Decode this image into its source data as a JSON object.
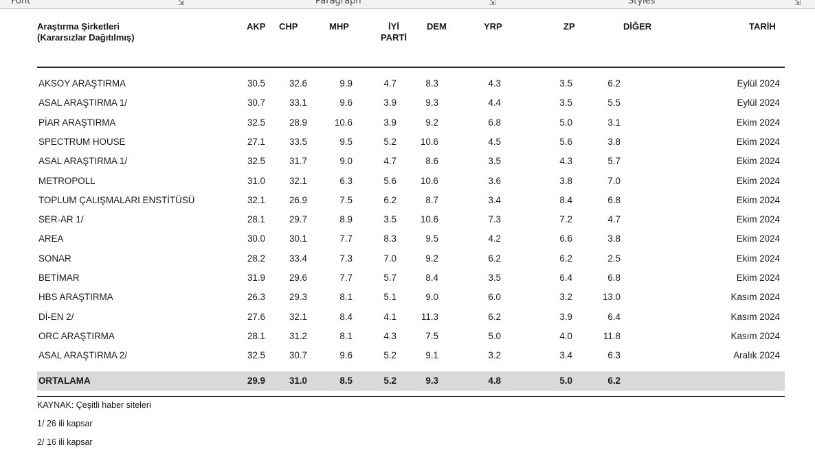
{
  "ribbon": {
    "groups": [
      "Font",
      "Paragraph",
      "Styles"
    ]
  },
  "table": {
    "header": {
      "company": [
        "Araştırma Şirketleri",
        "(Kararsızlar Dağıtılmış)"
      ],
      "akp": "AKP",
      "chp": "CHP",
      "mhp": "MHP",
      "iyi": [
        "İYİ",
        "PARTİ"
      ],
      "dem": "DEM",
      "yrp": "YRP",
      "zp": "ZP",
      "diger": "DİĞER",
      "tarih": "TARİH"
    },
    "rows": [
      {
        "company": "AKSOY ARAŞTIRMA",
        "akp": "30.5",
        "chp": "32.6",
        "mhp": "9.9",
        "iyi": "4.7",
        "dem": "8.3",
        "yrp": "4.3",
        "zp": "3.5",
        "diger": "6.2",
        "tarih": "Eylül 2024"
      },
      {
        "company": "ASAL ARAŞTIRMA 1/",
        "akp": "30.7",
        "chp": "33.1",
        "mhp": "9.6",
        "iyi": "3.9",
        "dem": "9.3",
        "yrp": "4.4",
        "zp": "3.5",
        "diger": "5.5",
        "tarih": "Eylül 2024"
      },
      {
        "company": "PİAR ARAŞTIRMA",
        "akp": "32.5",
        "chp": "28.9",
        "mhp": "10.6",
        "iyi": "3.9",
        "dem": "9.2",
        "yrp": "6.8",
        "zp": "5.0",
        "diger": "3.1",
        "tarih": "Ekim 2024"
      },
      {
        "company": "SPECTRUM HOUSE",
        "akp": "27.1",
        "chp": "33.5",
        "mhp": "9.5",
        "iyi": "5.2",
        "dem": "10.6",
        "yrp": "4.5",
        "zp": "5.6",
        "diger": "3.8",
        "tarih": "Ekim 2024"
      },
      {
        "company": "ASAL ARAŞTIRMA 1/",
        "akp": "32.5",
        "chp": "31.7",
        "mhp": "9.0",
        "iyi": "4.7",
        "dem": "8.6",
        "yrp": "3.5",
        "zp": "4.3",
        "diger": "5.7",
        "tarih": "Ekim 2024"
      },
      {
        "company": "METROPOLL",
        "akp": "31.0",
        "chp": "32.1",
        "mhp": "6.3",
        "iyi": "5.6",
        "dem": "10.6",
        "yrp": "3.6",
        "zp": "3.8",
        "diger": "7.0",
        "tarih": "Ekim 2024"
      },
      {
        "company": "TOPLUM ÇALIŞMALARI ENSTİTÜSÜ",
        "akp": "32.1",
        "chp": "26.9",
        "mhp": "7.5",
        "iyi": "6.2",
        "dem": "8.7",
        "yrp": "3.4",
        "zp": "8.4",
        "diger": "6.8",
        "tarih": "Ekim 2024"
      },
      {
        "company": "SER-AR 1/",
        "akp": "28.1",
        "chp": "29.7",
        "mhp": "8.9",
        "iyi": "3.5",
        "dem": "10.6",
        "yrp": "7.3",
        "zp": "7.2",
        "diger": "4.7",
        "tarih": "Ekim 2024"
      },
      {
        "company": "AREA",
        "akp": "30.0",
        "chp": "30.1",
        "mhp": "7.7",
        "iyi": "8.3",
        "dem": "9.5",
        "yrp": "4.2",
        "zp": "6.6",
        "diger": "3.8",
        "tarih": "Ekim 2024"
      },
      {
        "company": "SONAR",
        "akp": "28.2",
        "chp": "33.4",
        "mhp": "7.3",
        "iyi": "7.0",
        "dem": "9.2",
        "yrp": "6.2",
        "zp": "6.2",
        "diger": "2.5",
        "tarih": "Ekim 2024"
      },
      {
        "company": "BETİMAR",
        "akp": "31.9",
        "chp": "29.6",
        "mhp": "7.7",
        "iyi": "5.7",
        "dem": "8.4",
        "yrp": "3.5",
        "zp": "6.4",
        "diger": "6.8",
        "tarih": "Ekim 2024"
      },
      {
        "company": "HBS ARAŞTIRMA",
        "akp": "26.3",
        "chp": "29.3",
        "mhp": "8.1",
        "iyi": "5.1",
        "dem": "9.0",
        "yrp": "6.0",
        "zp": "3.2",
        "diger": "13.0",
        "tarih": "Kasım 2024"
      },
      {
        "company": "Dİ-EN 2/",
        "akp": "27.6",
        "chp": "32.1",
        "mhp": "8.4",
        "iyi": "4.1",
        "dem": "11.3",
        "yrp": "6.2",
        "zp": "3.9",
        "diger": "6.4",
        "tarih": "Kasım 2024"
      },
      {
        "company": "ORC ARAŞTIRMA",
        "akp": "28.1",
        "chp": "31.2",
        "mhp": "8.1",
        "iyi": "4.3",
        "dem": "7.5",
        "yrp": "5.0",
        "zp": "4.0",
        "diger": "11.8",
        "tarih": "Kasım 2024"
      },
      {
        "company": "ASAL ARAŞTIRMA 2/",
        "akp": "32.5",
        "chp": "30.7",
        "mhp": "9.6",
        "iyi": "5.2",
        "dem": "9.1",
        "yrp": "3.2",
        "zp": "3.4",
        "diger": "6.3",
        "tarih": "Aralık 2024"
      }
    ],
    "average": {
      "company": "ORTALAMA",
      "akp": "29.9",
      "chp": "31.0",
      "mhp": "8.5",
      "iyi": "5.2",
      "dem": "9.3",
      "yrp": "4.8",
      "zp": "5.0",
      "diger": "6.2",
      "tarih": ""
    }
  },
  "footnotes": [
    "KAYNAK: Çeşitli haber siteleri",
    "1/ 26 ili kapsar",
    "2/ 16 ili kapsar"
  ],
  "colors": {
    "average_row_bg": "#d9d9d9",
    "rule": "#222222"
  }
}
